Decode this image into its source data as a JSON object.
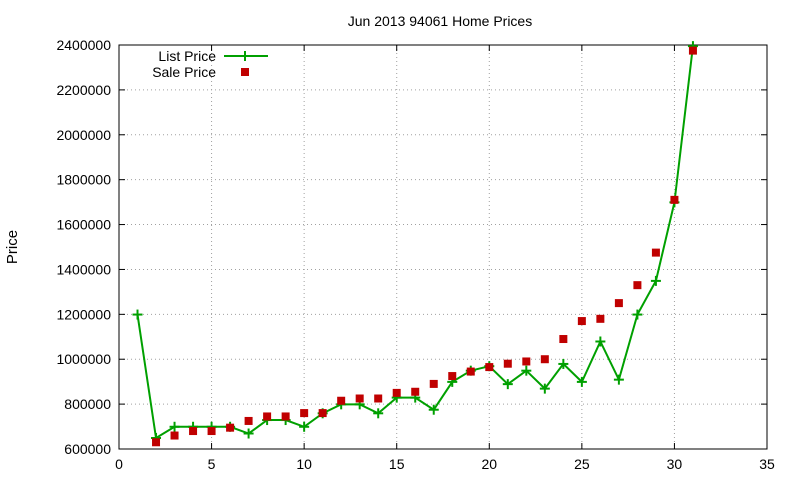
{
  "chart_data": {
    "type": "line",
    "title": "Jun 2013 94061 Home Prices",
    "xlabel": "",
    "ylabel": "Price",
    "xlim": [
      0,
      35
    ],
    "ylim": [
      600000,
      2400000
    ],
    "xticks": [
      0,
      5,
      10,
      15,
      20,
      25,
      30,
      35
    ],
    "yticks": [
      600000,
      800000,
      1000000,
      1200000,
      1400000,
      1600000,
      1800000,
      2000000,
      2200000,
      2400000
    ],
    "grid": true,
    "legend_position": "top-left",
    "series": [
      {
        "name": "List Price",
        "style": "line+points",
        "marker": "plus",
        "color": "#00a000",
        "x": [
          1,
          2,
          3,
          4,
          5,
          6,
          7,
          8,
          9,
          10,
          11,
          12,
          13,
          14,
          15,
          16,
          17,
          18,
          19,
          20,
          21,
          22,
          23,
          24,
          25,
          26,
          27,
          28,
          29,
          30,
          31
        ],
        "y": [
          1199000,
          649000,
          699000,
          699000,
          699000,
          699000,
          669000,
          729000,
          729000,
          699000,
          759000,
          799000,
          799000,
          759000,
          829000,
          829000,
          775000,
          899000,
          949000,
          969000,
          889000,
          949000,
          869000,
          979000,
          899000,
          1079000,
          909000,
          1199000,
          1349000,
          1699000,
          2395000
        ]
      },
      {
        "name": "Sale Price",
        "style": "points",
        "marker": "square",
        "color": "#c00000",
        "x": [
          2,
          3,
          4,
          5,
          6,
          7,
          8,
          9,
          10,
          11,
          12,
          13,
          14,
          15,
          16,
          17,
          18,
          19,
          20,
          21,
          22,
          23,
          24,
          25,
          26,
          27,
          28,
          29,
          30,
          31
        ],
        "y": [
          630000,
          660000,
          680000,
          680000,
          695000,
          725000,
          745000,
          745000,
          760000,
          760000,
          815000,
          825000,
          825000,
          850000,
          855000,
          890000,
          925000,
          945000,
          965000,
          980000,
          990000,
          1000000,
          1090000,
          1170000,
          1180000,
          1250000,
          1330000,
          1475000,
          1710000,
          2375000
        ]
      }
    ]
  }
}
